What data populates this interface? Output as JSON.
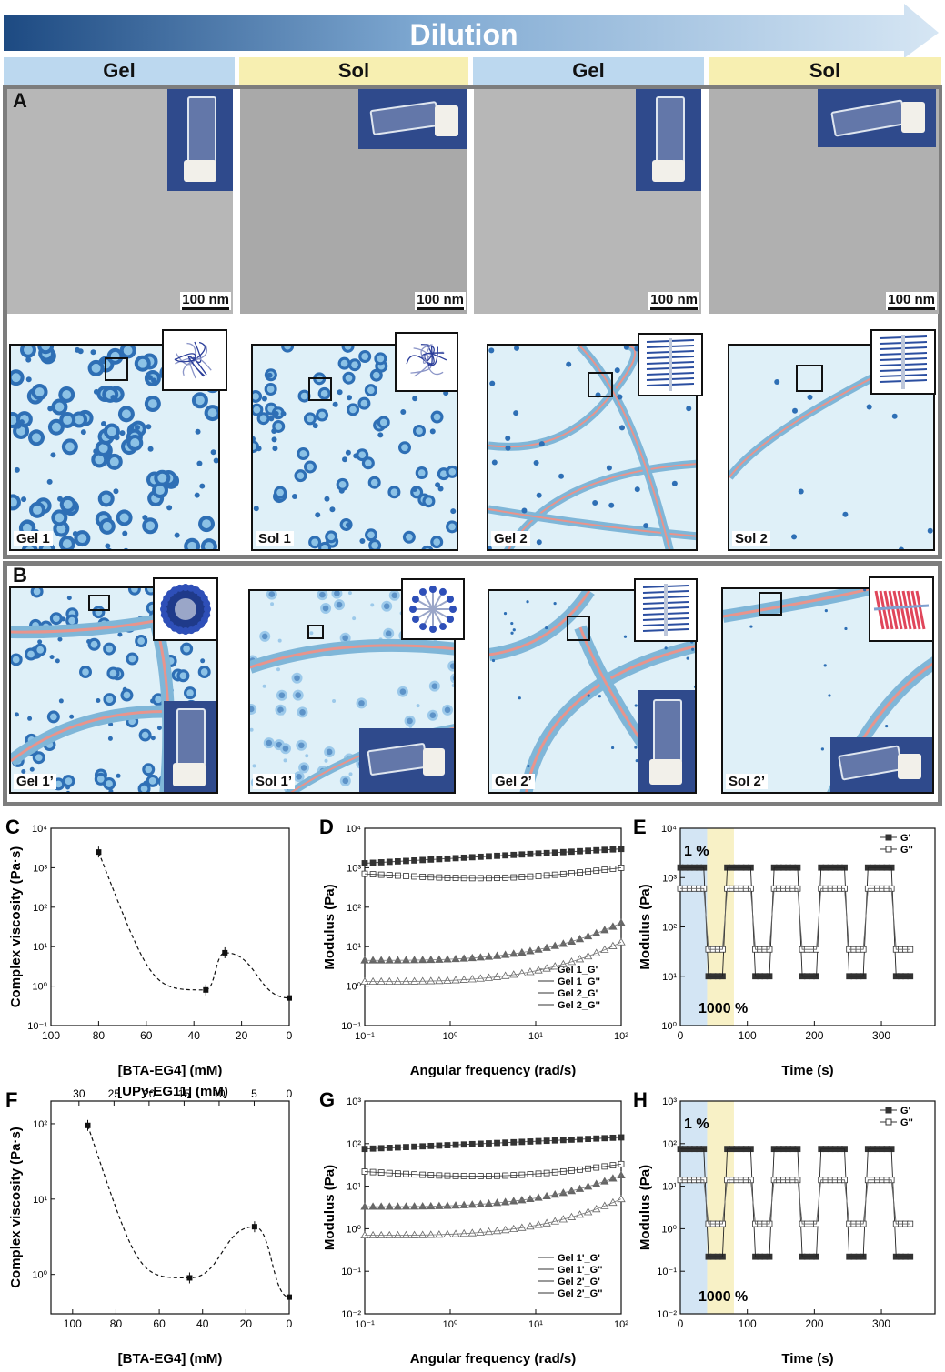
{
  "header": {
    "arrow_label": "Dilution",
    "columns": [
      "Gel",
      "Sol",
      "Gel",
      "Sol"
    ]
  },
  "panel_a": {
    "label": "A",
    "scale_bars": [
      "100 nm",
      "100 nm",
      "100 nm",
      "100 nm"
    ],
    "schematic_labels": [
      "Gel 1",
      "Sol 1",
      "Gel 2",
      "Sol 2"
    ]
  },
  "panel_b": {
    "label": "B",
    "schematic_labels": [
      "Gel 1’",
      "Sol 1’",
      "Gel 2’",
      "Sol 2’"
    ]
  },
  "colors": {
    "arrow_dark": "#1d4a82",
    "arrow_light": "#d6e6f4",
    "gel_header": "#bcd8ef",
    "sol_header": "#f7efb1",
    "micelle": "#2e6fb5",
    "fiber": "#7fb6d8",
    "fiber_core": "#e8948c",
    "bg_schematic": "#dff0f8"
  },
  "chart_data": [
    {
      "id": "C",
      "type": "line",
      "label": "C",
      "xlabel": "[BTA-EG4] (mM)",
      "ylabel": "Complex viscosity (Pa·s)",
      "yscale": "log",
      "ylim": [
        0.1,
        10000
      ],
      "xlim": [
        100,
        0
      ],
      "xticks": [
        "100",
        "80",
        "60",
        "40",
        "20",
        "0"
      ],
      "x": [
        80,
        35,
        27,
        0
      ],
      "y": [
        2500,
        0.8,
        7,
        0.5
      ]
    },
    {
      "id": "D",
      "type": "scatter",
      "label": "D",
      "xlabel": "Angular frequency (rad/s)",
      "ylabel": "Modulus (Pa)",
      "xscale": "log",
      "yscale": "log",
      "xlim": [
        0.1,
        100
      ],
      "ylim": [
        0.1,
        10000
      ],
      "series": [
        {
          "name": "Gel 1_G'",
          "marker": "filled-square",
          "start": 1300,
          "end": 3000,
          "shape": "rise"
        },
        {
          "name": "Gel 1_G''",
          "marker": "open-square",
          "start": 700,
          "end": 1000,
          "shape": "dip"
        },
        {
          "name": "Gel 2_G'",
          "marker": "filled-triangle",
          "start": 4.5,
          "end": 40,
          "shape": "upturn"
        },
        {
          "name": "Gel 2_G''",
          "marker": "open-triangle",
          "start": 1.3,
          "end": 13,
          "shape": "upturn"
        }
      ]
    },
    {
      "id": "E",
      "type": "line",
      "label": "E",
      "xlabel": "Time (s)",
      "ylabel": "Modulus (Pa)",
      "yscale": "log",
      "ylim": [
        1,
        10000
      ],
      "xlim": [
        0,
        380
      ],
      "xticks": [
        "0",
        "100",
        "200",
        "300"
      ],
      "annotations": [
        "1 %",
        "1000 %"
      ],
      "series": [
        {
          "name": "G'",
          "high": 1600,
          "low": 10
        },
        {
          "name": "G''",
          "high": 600,
          "low": 35
        }
      ]
    },
    {
      "id": "F",
      "type": "line",
      "label": "F",
      "xlabel": "[BTA-EG4] (mM)",
      "x2label": "[UPy-EG11] (mM)",
      "ylabel": "Complex viscosity (Pa·s)",
      "yscale": "log",
      "ylim": [
        0.3,
        200
      ],
      "xlim": [
        110,
        0
      ],
      "xticks": [
        "100",
        "80",
        "60",
        "40",
        "20",
        "0"
      ],
      "x2ticks": [
        "30",
        "25",
        "20",
        "15",
        "10",
        "5",
        "0"
      ],
      "x": [
        93,
        46,
        16,
        0
      ],
      "y": [
        95,
        0.9,
        4.3,
        0.5
      ]
    },
    {
      "id": "G",
      "type": "scatter",
      "label": "G",
      "xlabel": "Angular frequency (rad/s)",
      "ylabel": "Modulus (Pa)",
      "xscale": "log",
      "yscale": "log",
      "xlim": [
        0.1,
        100
      ],
      "ylim": [
        0.01,
        1000
      ],
      "series": [
        {
          "name": "Gel 1'_G'",
          "marker": "filled-square",
          "start": 75,
          "end": 140,
          "shape": "rise"
        },
        {
          "name": "Gel 1'_G''",
          "marker": "open-square",
          "start": 22,
          "end": 33,
          "shape": "dip"
        },
        {
          "name": "Gel 2'_G'",
          "marker": "filled-triangle",
          "start": 3.3,
          "end": 18,
          "shape": "upturn"
        },
        {
          "name": "Gel 2'_G''",
          "marker": "open-triangle",
          "start": 0.7,
          "end": 5,
          "shape": "upturn"
        }
      ]
    },
    {
      "id": "H",
      "type": "line",
      "label": "H",
      "xlabel": "Time (s)",
      "ylabel": "Modulus (Pa)",
      "yscale": "log",
      "ylim": [
        0.01,
        1000
      ],
      "xlim": [
        0,
        380
      ],
      "xticks": [
        "0",
        "100",
        "200",
        "300"
      ],
      "annotations": [
        "1 %",
        "1000 %"
      ],
      "series": [
        {
          "name": "G'",
          "high": 75,
          "low": 0.22
        },
        {
          "name": "G''",
          "high": 14,
          "low": 1.3
        }
      ]
    }
  ]
}
